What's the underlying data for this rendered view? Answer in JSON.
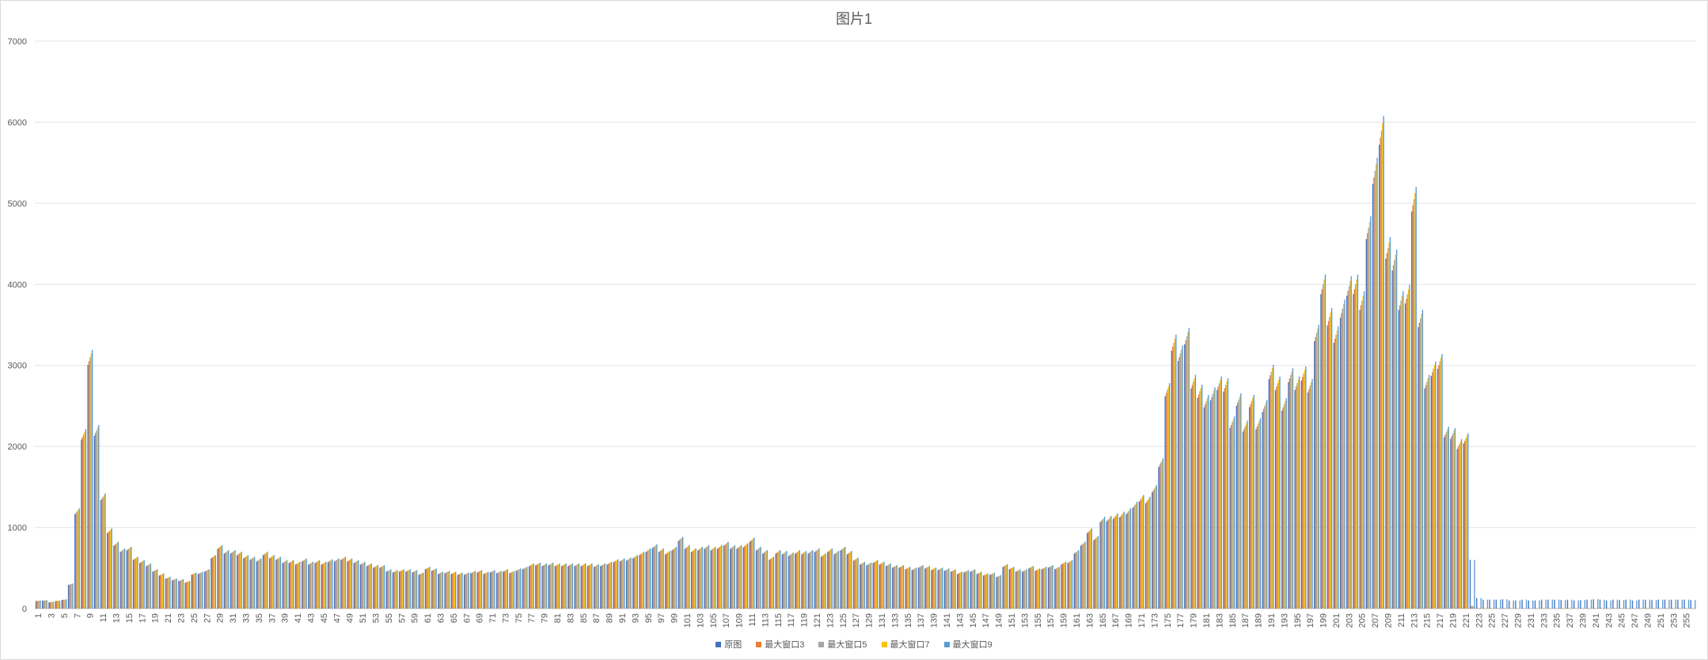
{
  "chart_data": {
    "type": "bar",
    "title": "图片1",
    "xlabel": "",
    "ylabel": "",
    "ylim": [
      0,
      7000
    ],
    "yticks": [
      0,
      1000,
      2000,
      3000,
      4000,
      5000,
      6000,
      7000
    ],
    "grid": true,
    "legend_position": "bottom",
    "categories_range": [
      1,
      256
    ],
    "xtick_step": 2,
    "anchors": [
      [
        1,
        95
      ],
      [
        2,
        100
      ],
      [
        3,
        80
      ],
      [
        4,
        95
      ],
      [
        5,
        110
      ],
      [
        6,
        300
      ],
      [
        7,
        1200
      ],
      [
        8,
        2150
      ],
      [
        9,
        3100
      ],
      [
        10,
        2200
      ],
      [
        11,
        1380
      ],
      [
        12,
        960
      ],
      [
        13,
        800
      ],
      [
        14,
        720
      ],
      [
        15,
        740
      ],
      [
        16,
        620
      ],
      [
        17,
        580
      ],
      [
        18,
        540
      ],
      [
        19,
        470
      ],
      [
        20,
        420
      ],
      [
        21,
        380
      ],
      [
        22,
        360
      ],
      [
        23,
        350
      ],
      [
        24,
        330
      ],
      [
        25,
        430
      ],
      [
        26,
        440
      ],
      [
        27,
        470
      ],
      [
        28,
        640
      ],
      [
        29,
        760
      ],
      [
        30,
        700
      ],
      [
        31,
        700
      ],
      [
        32,
        680
      ],
      [
        33,
        640
      ],
      [
        34,
        620
      ],
      [
        35,
        600
      ],
      [
        36,
        680
      ],
      [
        37,
        640
      ],
      [
        38,
        620
      ],
      [
        39,
        580
      ],
      [
        40,
        580
      ],
      [
        41,
        560
      ],
      [
        42,
        600
      ],
      [
        43,
        560
      ],
      [
        44,
        580
      ],
      [
        45,
        560
      ],
      [
        46,
        590
      ],
      [
        47,
        600
      ],
      [
        48,
        620
      ],
      [
        49,
        600
      ],
      [
        50,
        580
      ],
      [
        51,
        560
      ],
      [
        52,
        540
      ],
      [
        53,
        520
      ],
      [
        54,
        520
      ],
      [
        55,
        470
      ],
      [
        56,
        460
      ],
      [
        57,
        470
      ],
      [
        58,
        470
      ],
      [
        59,
        460
      ],
      [
        60,
        430
      ],
      [
        61,
        500
      ],
      [
        62,
        480
      ],
      [
        63,
        440
      ],
      [
        64,
        450
      ],
      [
        65,
        440
      ],
      [
        66,
        430
      ],
      [
        67,
        430
      ],
      [
        68,
        450
      ],
      [
        69,
        460
      ],
      [
        70,
        440
      ],
      [
        71,
        460
      ],
      [
        72,
        450
      ],
      [
        73,
        470
      ],
      [
        74,
        450
      ],
      [
        75,
        480
      ],
      [
        76,
        500
      ],
      [
        77,
        540
      ],
      [
        78,
        550
      ],
      [
        79,
        540
      ],
      [
        80,
        550
      ],
      [
        81,
        540
      ],
      [
        82,
        540
      ],
      [
        83,
        540
      ],
      [
        84,
        540
      ],
      [
        85,
        540
      ],
      [
        86,
        540
      ],
      [
        87,
        530
      ],
      [
        88,
        540
      ],
      [
        89,
        560
      ],
      [
        90,
        590
      ],
      [
        91,
        600
      ],
      [
        92,
        610
      ],
      [
        93,
        640
      ],
      [
        94,
        680
      ],
      [
        95,
        720
      ],
      [
        96,
        770
      ],
      [
        97,
        720
      ],
      [
        98,
        690
      ],
      [
        99,
        740
      ],
      [
        100,
        860
      ],
      [
        101,
        760
      ],
      [
        102,
        720
      ],
      [
        103,
        740
      ],
      [
        104,
        760
      ],
      [
        105,
        740
      ],
      [
        106,
        760
      ],
      [
        107,
        800
      ],
      [
        108,
        760
      ],
      [
        109,
        760
      ],
      [
        110,
        780
      ],
      [
        111,
        850
      ],
      [
        112,
        740
      ],
      [
        113,
        700
      ],
      [
        114,
        620
      ],
      [
        115,
        700
      ],
      [
        116,
        690
      ],
      [
        117,
        670
      ],
      [
        118,
        700
      ],
      [
        119,
        690
      ],
      [
        120,
        700
      ],
      [
        121,
        720
      ],
      [
        122,
        660
      ],
      [
        123,
        720
      ],
      [
        124,
        690
      ],
      [
        125,
        740
      ],
      [
        126,
        690
      ],
      [
        127,
        610
      ],
      [
        128,
        560
      ],
      [
        129,
        550
      ],
      [
        130,
        580
      ],
      [
        131,
        560
      ],
      [
        132,
        540
      ],
      [
        133,
        520
      ],
      [
        134,
        520
      ],
      [
        135,
        500
      ],
      [
        136,
        490
      ],
      [
        137,
        520
      ],
      [
        138,
        510
      ],
      [
        139,
        490
      ],
      [
        140,
        490
      ],
      [
        141,
        480
      ],
      [
        142,
        470
      ],
      [
        143,
        440
      ],
      [
        144,
        460
      ],
      [
        145,
        470
      ],
      [
        146,
        440
      ],
      [
        147,
        420
      ],
      [
        148,
        430
      ],
      [
        149,
        400
      ],
      [
        150,
        530
      ],
      [
        151,
        500
      ],
      [
        152,
        470
      ],
      [
        153,
        470
      ],
      [
        154,
        510
      ],
      [
        155,
        480
      ],
      [
        156,
        500
      ],
      [
        157,
        520
      ],
      [
        158,
        500
      ],
      [
        159,
        560
      ],
      [
        160,
        580
      ],
      [
        161,
        700
      ],
      [
        162,
        800
      ],
      [
        163,
        960
      ],
      [
        164,
        870
      ],
      [
        165,
        1100
      ],
      [
        166,
        1110
      ],
      [
        167,
        1140
      ],
      [
        168,
        1160
      ],
      [
        169,
        1200
      ],
      [
        170,
        1280
      ],
      [
        171,
        1360
      ],
      [
        172,
        1340
      ],
      [
        173,
        1480
      ],
      [
        174,
        1800
      ],
      [
        175,
        2700
      ],
      [
        176,
        3280
      ],
      [
        177,
        3150
      ],
      [
        178,
        3360
      ],
      [
        179,
        2800
      ],
      [
        180,
        2680
      ],
      [
        181,
        2560
      ],
      [
        182,
        2650
      ],
      [
        183,
        2780
      ],
      [
        184,
        2760
      ],
      [
        185,
        2300
      ],
      [
        186,
        2580
      ],
      [
        187,
        2250
      ],
      [
        188,
        2560
      ],
      [
        189,
        2280
      ],
      [
        190,
        2500
      ],
      [
        191,
        2920
      ],
      [
        192,
        2780
      ],
      [
        193,
        2520
      ],
      [
        194,
        2880
      ],
      [
        195,
        2780
      ],
      [
        196,
        2900
      ],
      [
        197,
        2750
      ],
      [
        198,
        3400
      ],
      [
        199,
        4000
      ],
      [
        200,
        3600
      ],
      [
        201,
        3380
      ],
      [
        202,
        3700
      ],
      [
        203,
        3980
      ],
      [
        204,
        4000
      ],
      [
        205,
        3800
      ],
      [
        206,
        4700
      ],
      [
        207,
        5400
      ],
      [
        208,
        5900
      ],
      [
        209,
        4450
      ],
      [
        210,
        4300
      ],
      [
        211,
        3800
      ],
      [
        212,
        3880
      ],
      [
        213,
        5050
      ],
      [
        214,
        3580
      ],
      [
        215,
        2800
      ],
      [
        216,
        2960
      ],
      [
        217,
        3050
      ],
      [
        218,
        2180
      ],
      [
        219,
        2160
      ],
      [
        220,
        2030
      ],
      [
        221,
        2100
      ],
      [
        222,
        600
      ],
      [
        223,
        130
      ],
      [
        224,
        110
      ],
      [
        225,
        110
      ],
      [
        226,
        110
      ],
      [
        227,
        115
      ],
      [
        228,
        100
      ],
      [
        229,
        100
      ],
      [
        230,
        110
      ],
      [
        231,
        100
      ],
      [
        232,
        100
      ],
      [
        233,
        110
      ],
      [
        234,
        110
      ],
      [
        235,
        110
      ],
      [
        236,
        105
      ],
      [
        237,
        110
      ],
      [
        238,
        100
      ],
      [
        239,
        105
      ],
      [
        240,
        110
      ],
      [
        241,
        115
      ],
      [
        242,
        110
      ],
      [
        243,
        100
      ],
      [
        244,
        110
      ],
      [
        245,
        105
      ],
      [
        246,
        110
      ],
      [
        247,
        100
      ],
      [
        248,
        110
      ],
      [
        249,
        110
      ],
      [
        250,
        105
      ],
      [
        251,
        110
      ],
      [
        252,
        110
      ],
      [
        253,
        110
      ],
      [
        254,
        110
      ],
      [
        255,
        110
      ],
      [
        256,
        105
      ]
    ],
    "series": [
      {
        "name": "原图",
        "color": "#4472c4"
      },
      {
        "name": "最大窗口3",
        "color": "#ed7d31"
      },
      {
        "name": "最大窗口5",
        "color": "#a5a5a5"
      },
      {
        "name": "最大窗口7",
        "color": "#ffc000"
      },
      {
        "name": "最大窗口9",
        "color": "#5b9bd5"
      }
    ]
  }
}
